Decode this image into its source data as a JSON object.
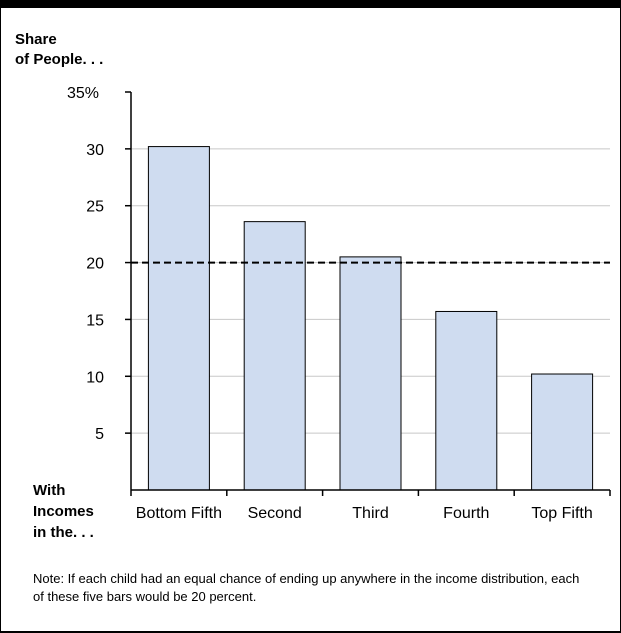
{
  "chart_data": {
    "type": "bar",
    "ylabel_lines": [
      "Share",
      "of People. . ."
    ],
    "xlabel_lines": [
      "With",
      "Incomes",
      "in the. . ."
    ],
    "categories": [
      "Bottom Fifth",
      "Second",
      "Third",
      "Fourth",
      "Top Fifth"
    ],
    "values": [
      30.2,
      23.6,
      20.5,
      15.7,
      10.2
    ],
    "ylim": [
      0,
      35
    ],
    "yticks": [
      5,
      10,
      15,
      20,
      25,
      30,
      35
    ],
    "ytick_labels": [
      "5",
      "10",
      "15",
      "20",
      "25",
      "30",
      "35%"
    ],
    "reference_line": 20,
    "grid": true,
    "bar_color": "#cfdcf0",
    "bar_edge_color": "#000000"
  },
  "note": "Note: If each child had an equal chance of ending up anywhere in the income distribution, each of these five bars would be 20 percent."
}
